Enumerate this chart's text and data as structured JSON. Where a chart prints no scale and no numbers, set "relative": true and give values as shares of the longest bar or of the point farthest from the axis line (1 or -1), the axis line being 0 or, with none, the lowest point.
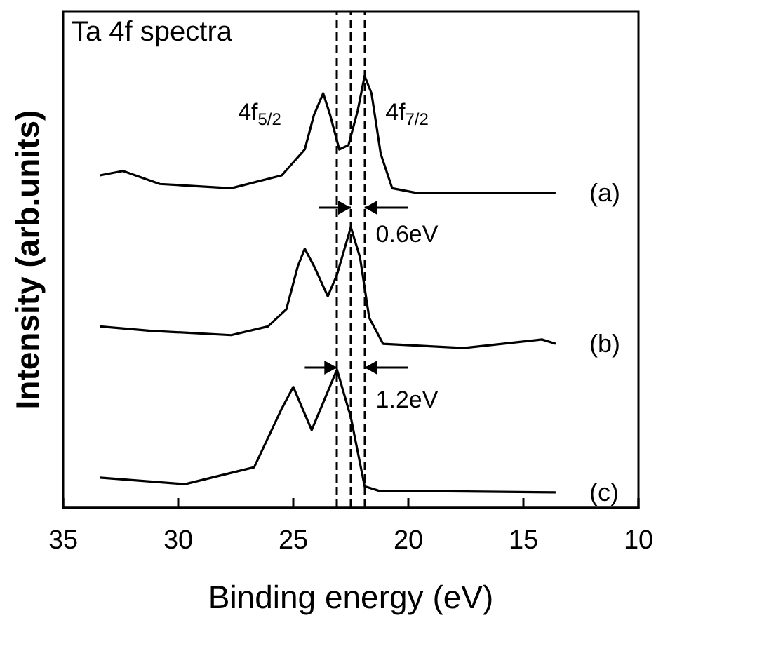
{
  "chart_data": {
    "type": "line",
    "title": "Ta 4f spectra",
    "xlabel": "Binding energy (eV)",
    "ylabel": "Intensity (arb.units)",
    "relative": true,
    "xlim": [
      35,
      10
    ],
    "xticks": [
      35,
      30,
      25,
      20,
      15,
      10
    ],
    "grid": false,
    "legend": false,
    "marker": "none",
    "line_style": "solid",
    "series": [
      {
        "name": "(a)",
        "color": "#000000",
        "x": [
          33.4,
          32.4,
          30.8,
          27.7,
          25.5,
          24.5,
          24.1,
          23.7,
          23.4,
          23.0,
          22.6,
          22.2,
          21.9,
          21.6,
          21.2,
          20.7,
          19.7,
          13.6
        ],
        "values": [
          0.77,
          0.78,
          0.75,
          0.74,
          0.77,
          0.83,
          0.91,
          0.96,
          0.91,
          0.83,
          0.84,
          0.92,
          1.0,
          0.96,
          0.82,
          0.74,
          0.73,
          0.73
        ]
      },
      {
        "name": "(b)",
        "color": "#000000",
        "x": [
          33.4,
          31.2,
          27.7,
          26.1,
          25.3,
          24.8,
          24.5,
          24.1,
          23.5,
          23.1,
          22.5,
          22.1,
          21.7,
          21.1,
          17.6,
          14.2,
          13.6
        ],
        "values": [
          0.42,
          0.41,
          0.4,
          0.42,
          0.46,
          0.56,
          0.6,
          0.56,
          0.49,
          0.54,
          0.65,
          0.58,
          0.44,
          0.38,
          0.37,
          0.39,
          0.38
        ]
      },
      {
        "name": "(c)",
        "color": "#000000",
        "x": [
          33.4,
          29.7,
          26.7,
          25.5,
          25.0,
          24.2,
          23.1,
          22.5,
          21.9,
          21.3,
          13.6
        ],
        "values": [
          0.07,
          0.055,
          0.094,
          0.23,
          0.28,
          0.18,
          0.32,
          0.21,
          0.05,
          0.04,
          0.036
        ]
      }
    ],
    "ref_lines": [
      {
        "axis": "x",
        "value": 21.9,
        "color": "#000000",
        "line_style": "dashed"
      },
      {
        "axis": "x",
        "value": 22.5,
        "color": "#000000",
        "line_style": "dashed"
      },
      {
        "axis": "x",
        "value": 23.1,
        "color": "#000000",
        "line_style": "dashed"
      }
    ],
    "annotations": [
      "4f$_{5/2}$",
      "4f$_{7/2}$",
      "0.6eV",
      "1.2eV"
    ]
  }
}
